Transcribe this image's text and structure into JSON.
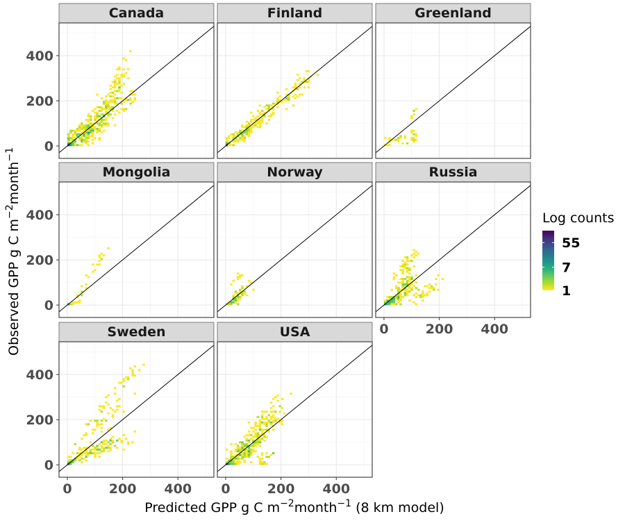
{
  "chart_data": {
    "type": "heatmap",
    "xlabel_main": "Predicted GPP g C m",
    "xlabel_sup1": "−2",
    "xlabel_mid": "month",
    "xlabel_sup2": "−1",
    "xlabel_tail": " (8 km model)",
    "ylabel_main": "Observed GPP g C m",
    "ylabel_sup1": "−2",
    "ylabel_mid": "month",
    "ylabel_sup2": "−1",
    "xlim": [
      -30,
      530
    ],
    "ylim": [
      -55,
      545
    ],
    "x_ticks": [
      0,
      200,
      400
    ],
    "y_ticks": [
      0,
      200,
      400
    ],
    "x_tick_labels": [
      "0",
      "200",
      "400"
    ],
    "y_tick_labels": [
      "0",
      "200",
      "400"
    ],
    "grid": true,
    "identity_line": true,
    "bin_size": 8,
    "legend": {
      "title": "Log counts",
      "labels": [
        "55",
        "7",
        "1"
      ],
      "values": [
        55,
        7,
        1
      ],
      "max": 150,
      "placement": "right",
      "colors": [
        "#fde725",
        "#b5de2b",
        "#6ece58",
        "#35b779",
        "#1f9e89",
        "#26828e",
        "#31688e",
        "#3e4989",
        "#482878",
        "#440154"
      ]
    },
    "panels": [
      {
        "name": "Canada",
        "clusters": [
          {
            "cx": 0,
            "cy": 0,
            "dx": 22,
            "dy": 22,
            "spread": 10,
            "count": 60,
            "seed": 11
          },
          {
            "cx": 60,
            "cy": 55,
            "dx": 70,
            "dy": 50,
            "spread": 30,
            "count": 220,
            "seed": 12
          },
          {
            "cx": 120,
            "cy": 140,
            "dx": 55,
            "dy": 55,
            "spread": 45,
            "count": 120,
            "seed": 13
          },
          {
            "cx": 180,
            "cy": 260,
            "dx": 25,
            "dy": 90,
            "spread": 30,
            "count": 60,
            "seed": 14
          },
          {
            "cx": 220,
            "cy": 200,
            "dx": 30,
            "dy": 30,
            "spread": 25,
            "count": 25,
            "seed": 15
          }
        ]
      },
      {
        "name": "Finland",
        "clusters": [
          {
            "cx": 0,
            "cy": 0,
            "dx": 15,
            "dy": 15,
            "spread": 8,
            "count": 40,
            "seed": 21
          },
          {
            "cx": 60,
            "cy": 55,
            "dx": 55,
            "dy": 45,
            "spread": 18,
            "count": 110,
            "seed": 22
          },
          {
            "cx": 150,
            "cy": 160,
            "dx": 60,
            "dy": 55,
            "spread": 30,
            "count": 70,
            "seed": 23
          },
          {
            "cx": 260,
            "cy": 250,
            "dx": 40,
            "dy": 60,
            "spread": 35,
            "count": 45,
            "seed": 24
          }
        ]
      },
      {
        "name": "Greenland",
        "clusters": [
          {
            "cx": 50,
            "cy": 30,
            "dx": 50,
            "dy": 25,
            "spread": 15,
            "count": 25,
            "seed": 31
          },
          {
            "cx": 110,
            "cy": 40,
            "dx": 20,
            "dy": 20,
            "spread": 12,
            "count": 12,
            "seed": 32
          },
          {
            "cx": 110,
            "cy": 150,
            "dx": 15,
            "dy": 40,
            "spread": 10,
            "count": 6,
            "seed": 33
          }
        ]
      },
      {
        "name": "Mongolia",
        "clusters": [
          {
            "cx": 10,
            "cy": 5,
            "dx": 15,
            "dy": 8,
            "spread": 5,
            "count": 10,
            "seed": 41
          },
          {
            "cx": 60,
            "cy": 80,
            "dx": 30,
            "dy": 80,
            "spread": 15,
            "count": 18,
            "seed": 42
          },
          {
            "cx": 120,
            "cy": 200,
            "dx": 20,
            "dy": 40,
            "spread": 10,
            "count": 10,
            "seed": 43
          }
        ]
      },
      {
        "name": "Norway",
        "clusters": [
          {
            "cx": 25,
            "cy": 15,
            "dx": 20,
            "dy": 15,
            "spread": 8,
            "count": 30,
            "seed": 51
          },
          {
            "cx": 60,
            "cy": 60,
            "dx": 35,
            "dy": 40,
            "spread": 18,
            "count": 40,
            "seed": 52
          },
          {
            "cx": 40,
            "cy": 110,
            "dx": 15,
            "dy": 25,
            "spread": 10,
            "count": 8,
            "seed": 53
          }
        ]
      },
      {
        "name": "Russia",
        "clusters": [
          {
            "cx": 20,
            "cy": 15,
            "dx": 25,
            "dy": 20,
            "spread": 10,
            "count": 80,
            "seed": 61
          },
          {
            "cx": 70,
            "cy": 70,
            "dx": 40,
            "dy": 60,
            "spread": 30,
            "count": 120,
            "seed": 62
          },
          {
            "cx": 80,
            "cy": 180,
            "dx": 30,
            "dy": 50,
            "spread": 20,
            "count": 40,
            "seed": 63
          },
          {
            "cx": 140,
            "cy": 60,
            "dx": 50,
            "dy": 35,
            "spread": 25,
            "count": 40,
            "seed": 64
          }
        ]
      },
      {
        "name": "Sweden",
        "clusters": [
          {
            "cx": 10,
            "cy": 10,
            "dx": 20,
            "dy": 15,
            "spread": 6,
            "count": 40,
            "seed": 71
          },
          {
            "cx": 110,
            "cy": 70,
            "dx": 100,
            "dy": 45,
            "spread": 20,
            "count": 120,
            "seed": 72
          },
          {
            "cx": 120,
            "cy": 200,
            "dx": 70,
            "dy": 90,
            "spread": 50,
            "count": 60,
            "seed": 73
          },
          {
            "cx": 220,
            "cy": 390,
            "dx": 40,
            "dy": 60,
            "spread": 30,
            "count": 20,
            "seed": 74
          }
        ]
      },
      {
        "name": "USA",
        "clusters": [
          {
            "cx": 10,
            "cy": 5,
            "dx": 20,
            "dy": 15,
            "spread": 8,
            "count": 60,
            "seed": 81
          },
          {
            "cx": 70,
            "cy": 70,
            "dx": 60,
            "dy": 55,
            "spread": 30,
            "count": 200,
            "seed": 82
          },
          {
            "cx": 150,
            "cy": 190,
            "dx": 50,
            "dy": 60,
            "spread": 45,
            "count": 100,
            "seed": 83
          },
          {
            "cx": 140,
            "cy": 30,
            "dx": 40,
            "dy": 25,
            "spread": 20,
            "count": 25,
            "seed": 84
          }
        ]
      }
    ]
  }
}
